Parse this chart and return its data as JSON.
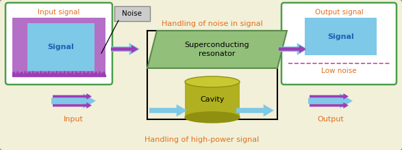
{
  "bg_color": "#f2f0d8",
  "title_noise_handling": "Handling of noise in signal",
  "title_power_handling": "Handling of high-power signal",
  "input_signal_label": "Input signal",
  "output_signal_label": "Output signal",
  "signal_label": "Signal",
  "noise_label": "Noise",
  "input_label": "Input",
  "output_label": "Output",
  "low_noise_label": "Low noise",
  "resonator_label": "Superconducting\nresonator",
  "cavity_label": "Cavity",
  "green_border": "#4a9e4a",
  "purple_color": "#9b3fb5",
  "light_blue": "#7ec8e8",
  "resonator_green": "#92c07a",
  "resonator_edge": "#5a8a4a",
  "olive_top": "#c8c830",
  "olive_mid": "#b0b020",
  "olive_bot": "#909010",
  "text_orange": "#e07020",
  "text_blue": "#2060b0",
  "noise_box_bg": "#cccccc",
  "outer_edge": "#999999"
}
